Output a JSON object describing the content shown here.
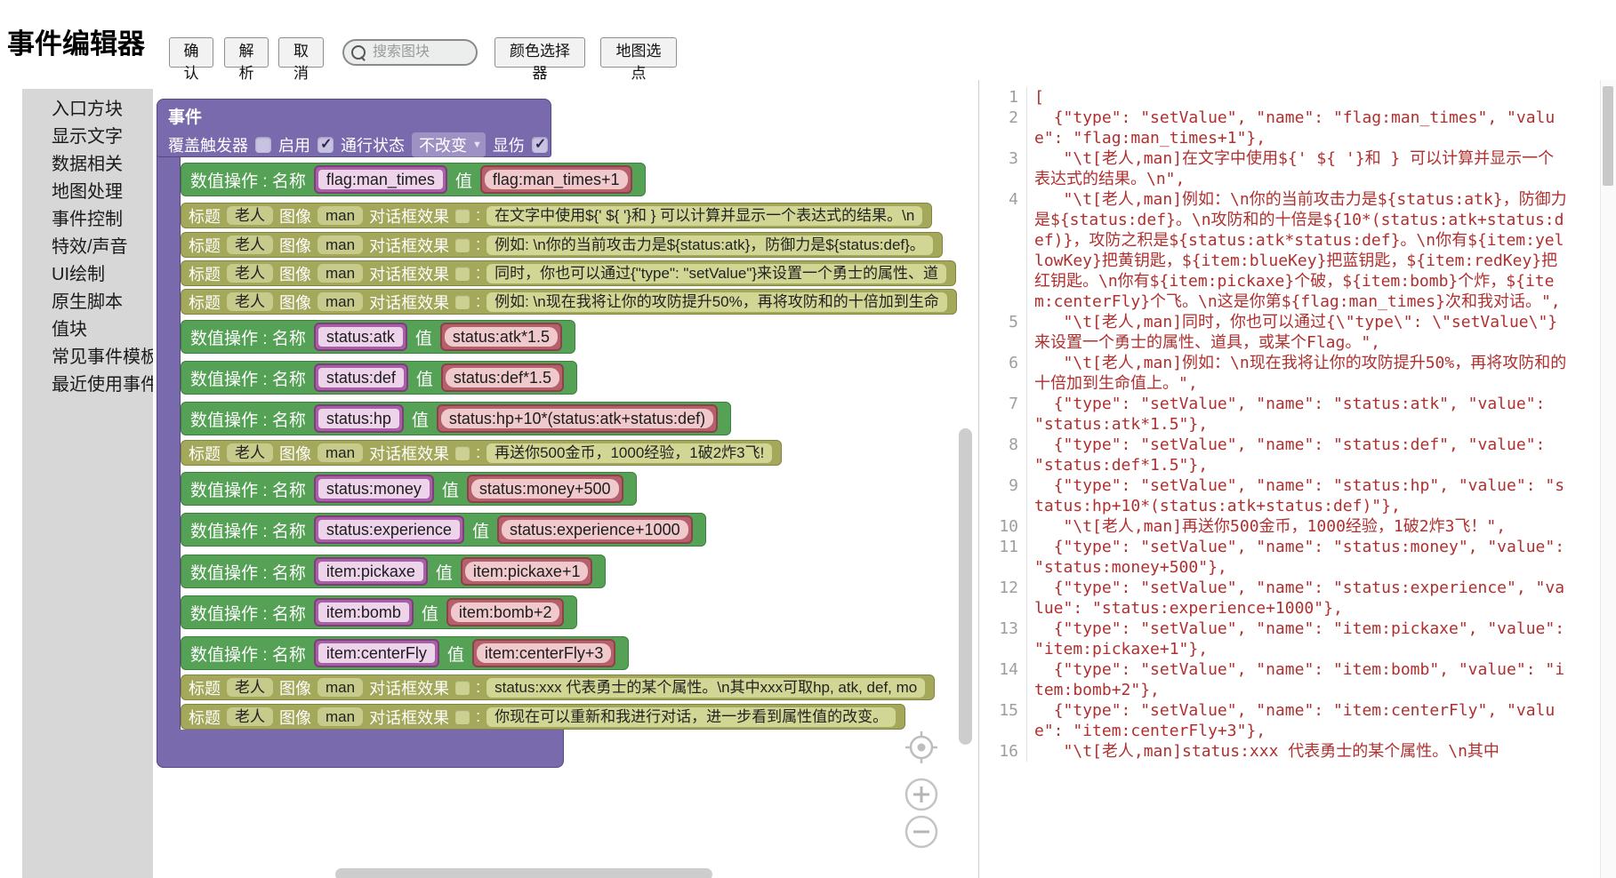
{
  "header": {
    "title": "事件编辑器",
    "confirm": "确认",
    "parse": "解析",
    "cancel": "取消",
    "search_placeholder": "搜索图块",
    "color_picker": "颜色选择器",
    "map_pick": "地图选点"
  },
  "sidebar": {
    "items": [
      "入口方块",
      "显示文字",
      "数据相关",
      "地图处理",
      "事件控制",
      "特效/声音",
      "UI绘制",
      "原生脚本",
      "值块",
      "常见事件模板",
      "最近使用事件"
    ]
  },
  "workspace": {
    "event_block": {
      "title": "事件",
      "fields_row": {
        "trigger_label": "覆盖触发器",
        "trigger_checked": false,
        "enable_label": "启用",
        "enable_checked": true,
        "pass_label": "通行状态",
        "pass_value": "不改变",
        "damage_label": "显伤",
        "damage_checked": true
      },
      "set_row_label": "数值操作 : 名称",
      "set_row_value_label": "值",
      "text_row_labels": {
        "title_label": "标题",
        "title_value": "老人",
        "image_label": "图像",
        "image_value": "man",
        "effect_label": "对话框效果",
        "colon": ":"
      },
      "rows": [
        {
          "kind": "set",
          "name": "flag:man_times",
          "value": "flag:man_times+1"
        },
        {
          "kind": "text",
          "text": "在文字中使用${' ${ '}和 } 可以计算并显示一个表达式的结果。\\n"
        },
        {
          "kind": "text",
          "text": "例如: \\n你的当前攻击力是${status:atk}，防御力是${status:def}。"
        },
        {
          "kind": "text",
          "text": "同时，你也可以通过{\"type\": \"setValue\"}来设置一个勇士的属性、道"
        },
        {
          "kind": "text",
          "text": "例如: \\n现在我将让你的攻防提升50%，再将攻防和的十倍加到生命"
        },
        {
          "kind": "set",
          "name": "status:atk",
          "value": "status:atk*1.5"
        },
        {
          "kind": "set",
          "name": "status:def",
          "value": "status:def*1.5"
        },
        {
          "kind": "set",
          "name": "status:hp",
          "value": "status:hp+10*(status:atk+status:def)"
        },
        {
          "kind": "text",
          "text": "再送你500金币，1000经验，1破2炸3飞!"
        },
        {
          "kind": "set",
          "name": "status:money",
          "value": "status:money+500"
        },
        {
          "kind": "set",
          "name": "status:experience",
          "value": "status:experience+1000"
        },
        {
          "kind": "set",
          "name": "item:pickaxe",
          "value": "item:pickaxe+1"
        },
        {
          "kind": "set",
          "name": "item:bomb",
          "value": "item:bomb+2"
        },
        {
          "kind": "set",
          "name": "item:centerFly",
          "value": "item:centerFly+3"
        },
        {
          "kind": "text",
          "text": "status:xxx 代表勇士的某个属性。\\n其中xxx可取hp, atk, def, mo"
        },
        {
          "kind": "text",
          "text": "你现在可以重新和我进行对话，进一步看到属性值的改变。"
        }
      ]
    }
  },
  "code_panel": {
    "lines": [
      {
        "num": "1",
        "text": "["
      },
      {
        "num": "2",
        "text": "  {\"type\": \"setValue\", \"name\": \"flag:man_times\", \"value\": \"flag:man_times+1\"},"
      },
      {
        "num": "3",
        "text": "   \"\\t[老人,man]在文字中使用${' ${ '}和 } 可以计算并显示一个表达式的结果。\\n\","
      },
      {
        "num": "4",
        "text": "   \"\\t[老人,man]例如：\\n你的当前攻击力是${status:atk}，防御力是${status:def}。\\n攻防和的十倍是${10*(status:atk+status:def)}，攻防之积是${status:atk*status:def}。\\n你有${item:yellowKey}把黄钥匙，${item:blueKey}把蓝钥匙，${item:redKey}把红钥匙。\\n你有${item:pickaxe}个破，${item:bomb}个炸，${item:centerFly}个飞。\\n这是你第${flag:man_times}次和我对话。\","
      },
      {
        "num": "5",
        "text": "   \"\\t[老人,man]同时，你也可以通过{\\\"type\\\": \\\"setValue\\\"}来设置一个勇士的属性、道具，或某个Flag。\","
      },
      {
        "num": "6",
        "text": "   \"\\t[老人,man]例如：\\n现在我将让你的攻防提升50%，再将攻防和的十倍加到生命值上。\","
      },
      {
        "num": "7",
        "text": "  {\"type\": \"setValue\", \"name\": \"status:atk\", \"value\": \"status:atk*1.5\"},"
      },
      {
        "num": "8",
        "text": "  {\"type\": \"setValue\", \"name\": \"status:def\", \"value\": \"status:def*1.5\"},"
      },
      {
        "num": "9",
        "text": "  {\"type\": \"setValue\", \"name\": \"status:hp\", \"value\": \"status:hp+10*(status:atk+status:def)\"},"
      },
      {
        "num": "10",
        "text": "   \"\\t[老人,man]再送你500金币，1000经验，1破2炸3飞！\","
      },
      {
        "num": "11",
        "text": "  {\"type\": \"setValue\", \"name\": \"status:money\", \"value\": \"status:money+500\"},"
      },
      {
        "num": "12",
        "text": "  {\"type\": \"setValue\", \"name\": \"status:experience\", \"value\": \"status:experience+1000\"},"
      },
      {
        "num": "13",
        "text": "  {\"type\": \"setValue\", \"name\": \"item:pickaxe\", \"value\": \"item:pickaxe+1\"},"
      },
      {
        "num": "14",
        "text": "  {\"type\": \"setValue\", \"name\": \"item:bomb\", \"value\": \"item:bomb+2\"},"
      },
      {
        "num": "15",
        "text": "  {\"type\": \"setValue\", \"name\": \"item:centerFly\", \"value\": \"item:centerFly+3\"},"
      },
      {
        "num": "16",
        "text": "   \"\\t[老人,man]status:xxx 代表勇士的某个属性。\\n其中"
      }
    ]
  },
  "colors": {
    "event_purple": "#7969ad",
    "setvalue_green": "#55a156",
    "text_olive": "#a4a85b",
    "name_field_magenta": "#a95fa5",
    "value_field_rose": "#b5606a",
    "code_text_red": "#b03030"
  }
}
